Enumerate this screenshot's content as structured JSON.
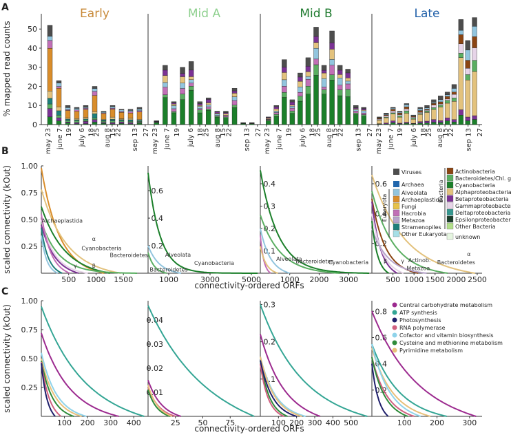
{
  "figure": {
    "panel_letters": [
      "A",
      "B",
      "C"
    ],
    "colors": {
      "Viruses": "#4d4d4d",
      "Archaea": "#2166ac",
      "Alveolata": "#92c5de",
      "Archaeplastida": "#d98d2b",
      "Fungi": "#e6c24a",
      "Hacrobia": "#c16fb6",
      "Metazoa": "#b8a5cc",
      "Stramenopiles": "#1d7f7a",
      "Other Eukaryota": "#a6dfe6",
      "Actinobacteria": "#8b4513",
      "Bacteroidetes/Chl. gr.": "#5aae61",
      "Cyanobacteria": "#1b7f2a",
      "Alphaproteobacteria": "#e3c27d",
      "Betaproteobacteria": "#7b3294",
      "Gammaproteobacteria": "#e7d4e8",
      "Deltaproteobacteria": "#35978f",
      "Epsilonproteobacteria": "#1b3d2a",
      "Other Bacteria": "#b2df8a",
      "unknown": "#e5f5e0",
      "Central carbohydrate metabolism": "#9c2a8f",
      "ATP synthesis": "#33a594",
      "Photosynthesis": "#1f1f6b",
      "RNA polymerase": "#d06080",
      "Cofactor and vitamin biosynthesis": "#8fd3ea",
      "Cysteine and methionine metabolism": "#2e8b3a",
      "Pyrimidine metabolism": "#e8c07a"
    }
  },
  "chart_data": [
    {
      "panel": "A",
      "type": "bar",
      "stacked": true,
      "ylabel": "% mapped read counts",
      "ylim": [
        0,
        58
      ],
      "yticks": [
        0,
        10,
        20,
        30,
        40,
        50
      ],
      "subplots": [
        {
          "title": "Early",
          "title_color": "#c88a3a",
          "tick_labels": [
            "may 23",
            "june 7",
            "19",
            "july 6",
            "18",
            "25",
            "aug 8",
            "15",
            "22",
            "sep 13",
            "27"
          ],
          "tick_dates": [
            0,
            15,
            27,
            44,
            56,
            63,
            77,
            84,
            91,
            113,
            127
          ],
          "totals": [
            52,
            23,
            10,
            9,
            10,
            20,
            7,
            10,
            8,
            8,
            9
          ],
          "dominant": "Archaeplastida"
        },
        {
          "title": "Mid A",
          "title_color": "#8ed08e",
          "tick_labels": [
            "may 23",
            "june 7",
            "19",
            "july 6",
            "18",
            "25",
            "aug 8",
            "15",
            "22",
            "sep 13",
            "27"
          ],
          "tick_dates": [
            0,
            15,
            27,
            44,
            56,
            63,
            77,
            84,
            91,
            113,
            127
          ],
          "totals": [
            2,
            31,
            12,
            30,
            33,
            12,
            14,
            7,
            7,
            19,
            1,
            1
          ],
          "dominant": "Cyanobacteria"
        },
        {
          "title": "Mid B",
          "title_color": "#1e7a2e",
          "tick_labels": [
            "may 23",
            "june 7",
            "19",
            "july 6",
            "18",
            "25",
            "aug 8",
            "15",
            "22",
            "sep 13",
            "27"
          ],
          "tick_dates": [
            0,
            15,
            27,
            44,
            56,
            63,
            77,
            84,
            91,
            113,
            127
          ],
          "totals": [
            4,
            10,
            34,
            13,
            27,
            35,
            51,
            31,
            49,
            31,
            29,
            10,
            9
          ],
          "dominant": "Cyanobacteria"
        },
        {
          "title": "Late",
          "title_color": "#1f5fa8",
          "tick_labels": [
            "may 23",
            "june 7",
            "19",
            "july 6",
            "18",
            "25",
            "aug 8",
            "15",
            "22",
            "sep 13",
            "27"
          ],
          "tick_dates": [
            0,
            15,
            27,
            44,
            56,
            63,
            77,
            84,
            91,
            113,
            127
          ],
          "totals": [
            4,
            6,
            9,
            7,
            11,
            5,
            9,
            10,
            13,
            15,
            17,
            21,
            55,
            44,
            56
          ],
          "dominant": "Alphaproteobacteria"
        }
      ],
      "legend_groups": [
        {
          "group": "",
          "items": [
            "Viruses",
            "Archaea"
          ]
        },
        {
          "group": "Eukaryota",
          "items": [
            "Alveolata",
            "Archaeplastida",
            "Fungi",
            "Hacrobia",
            "Metazoa",
            "Stramenopiles",
            "Other Eukaryota"
          ]
        },
        {
          "group": "Bacteria",
          "items": [
            "Actinobacteria",
            "Bacteroidetes/Chl. gr.",
            "Cyanobacteria",
            "Alphaproteobacteria",
            "Betaproteobacteria",
            "Gammaproteobacteria",
            "Deltaproteobacteria",
            "Epsilonproteobacteria",
            "Other Bacteria"
          ]
        },
        {
          "group": "",
          "items": [
            "unknown"
          ]
        }
      ]
    },
    {
      "panel": "B",
      "type": "line",
      "ylabel": "scaled connectivity (kOut)",
      "xlabel": "connectivity-ordered ORFs",
      "subplots": [
        {
          "xlim": [
            0,
            1900
          ],
          "ylim": [
            0,
            1.0
          ],
          "xticks": [
            500,
            1000,
            1500
          ],
          "yticks": [
            0.25,
            0.5,
            0.75,
            1.0
          ],
          "ytick_labels": [
            "0.25",
            "0.50",
            "0.75",
            "1.00"
          ],
          "series": [
            {
              "name": "Archaeplastida",
              "n": 1150,
              "y0": 0.98,
              "k": 3.5
            },
            {
              "name": "Alphaproteobacteria",
              "n": 1450,
              "y0": 0.78,
              "k": 3.2
            },
            {
              "name": "Cyanobacteria",
              "n": 1250,
              "y0": 0.62,
              "k": 3.0
            },
            {
              "name": "Bacteroidetes/Chl. gr.",
              "n": 1750,
              "y0": 0.48,
              "k": 5.5
            },
            {
              "name": "Betaproteobacteria",
              "n": 680,
              "y0": 0.45,
              "k": 2.8
            },
            {
              "name": "Gammaproteobacteria",
              "n": 850,
              "y0": 0.5,
              "k": 3.5
            },
            {
              "name": "Hacrobia",
              "n": 520,
              "y0": 0.55,
              "k": 3.0
            },
            {
              "name": "Stramenopiles",
              "n": 380,
              "y0": 0.42,
              "k": 3.0
            },
            {
              "name": "Alveolata",
              "n": 300,
              "y0": 0.35,
              "k": 3.0
            }
          ],
          "annotations": [
            {
              "text": "Archaeplastida",
              "x": 380,
              "y": 0.47
            },
            {
              "text": "α",
              "x": 960,
              "y": 0.3
            },
            {
              "text": "Cyanobacteria",
              "x": 1100,
              "y": 0.215
            },
            {
              "text": "Bacteroidetes",
              "x": 1600,
              "y": 0.15
            },
            {
              "text": "γ",
              "x": 620,
              "y": 0.05
            },
            {
              "text": "β",
              "x": 960,
              "y": 0.05
            }
          ]
        },
        {
          "xlim": [
            0,
            5300
          ],
          "ylim": [
            0,
            0.78
          ],
          "xticks": [
            1000,
            3000,
            5000
          ],
          "yticks": [
            0.2,
            0.4,
            0.6
          ],
          "ytick_labels": [
            "0.2",
            "0.4",
            "0.6"
          ],
          "series": [
            {
              "name": "Cyanobacteria",
              "n": 5300,
              "y0": 0.73,
              "k": 9.0
            },
            {
              "name": "Alveolata",
              "n": 1600,
              "y0": 0.2,
              "k": 3.0
            },
            {
              "name": "Bacteroidetes/Chl. gr.",
              "n": 900,
              "y0": 0.15,
              "k": 3.0
            }
          ],
          "annotations": [
            {
              "text": "Alveolata",
              "x": 1450,
              "y": 0.12
            },
            {
              "text": "Cyanobacteria",
              "x": 3200,
              "y": 0.06
            },
            {
              "text": "Bacteroidetes",
              "x": 1000,
              "y": 0.012
            }
          ]
        },
        {
          "xlim": [
            0,
            3700
          ],
          "ylim": [
            0,
            0.48
          ],
          "xticks": [
            1000,
            2000,
            3000
          ],
          "yticks": [
            0.1,
            0.2,
            0.3,
            0.4
          ],
          "ytick_labels": [
            "0.1",
            "0.2",
            "0.3",
            "0.4"
          ],
          "series": [
            {
              "name": "Cyanobacteria",
              "n": 3700,
              "y0": 0.46,
              "k": 6.0
            },
            {
              "name": "Bacteroidetes/Chl. gr.",
              "n": 2700,
              "y0": 0.26,
              "k": 4.0
            },
            {
              "name": "Alveolata",
              "n": 1000,
              "y0": 0.2,
              "k": 3.0
            },
            {
              "name": "Hacrobia",
              "n": 350,
              "y0": 0.17,
              "k": 3.0
            },
            {
              "name": "Alphaproteobacteria",
              "n": 600,
              "y0": 0.12,
              "k": 3.0
            }
          ],
          "annotations": [
            {
              "text": "Alveolata",
              "x": 980,
              "y": 0.055
            },
            {
              "text": "Bacteroidetes",
              "x": 1850,
              "y": 0.045
            },
            {
              "text": "Cyanobacteria",
              "x": 3000,
              "y": 0.04
            }
          ]
        },
        {
          "xlim": [
            0,
            2550
          ],
          "ylim": [
            0,
            0.72
          ],
          "xticks": [
            500,
            1000,
            1500,
            2000,
            2500
          ],
          "yticks": [
            0.2,
            0.4,
            0.6
          ],
          "ytick_labels": [
            "0.2",
            "0.4",
            "0.6"
          ],
          "series": [
            {
              "name": "Alphaproteobacteria",
              "n": 2450,
              "y0": 0.66,
              "k": 3.2
            },
            {
              "name": "Bacteroidetes/Chl. gr.",
              "n": 1800,
              "y0": 0.55,
              "k": 3.5
            },
            {
              "name": "Actinobacteria",
              "n": 1100,
              "y0": 0.5,
              "k": 3.5
            },
            {
              "name": "Betaproteobacteria",
              "n": 600,
              "y0": 0.48,
              "k": 3.0
            },
            {
              "name": "Gammaproteobacteria",
              "n": 750,
              "y0": 0.4,
              "k": 3.0
            },
            {
              "name": "Metazoa",
              "n": 1300,
              "y0": 0.3,
              "k": 3.5
            },
            {
              "name": "Cyanobacteria",
              "n": 400,
              "y0": 0.35,
              "k": 3.0
            }
          ],
          "annotations": [
            {
              "text": "α",
              "x": 2300,
              "y": 0.115
            },
            {
              "text": "Actinob.",
              "x": 1130,
              "y": 0.075
            },
            {
              "text": "Bacteroidetes",
              "x": 2000,
              "y": 0.06
            },
            {
              "text": "β",
              "x": 320,
              "y": 0.07
            },
            {
              "text": "γ",
              "x": 730,
              "y": 0.07
            },
            {
              "text": "Metazoa",
              "x": 1100,
              "y": 0.02
            }
          ]
        }
      ]
    },
    {
      "panel": "C",
      "type": "line",
      "ylabel": "scaled connectivity (kOut)",
      "xlabel": "connectivity-ordered ORFs",
      "legend": [
        "Central carbohydrate metabolism",
        "ATP synthesis",
        "Photosynthesis",
        "RNA polymerase",
        "Cofactor and vitamin biosynthesis",
        "Cysteine and methionine metabolism",
        "Pyrimidine metabolism"
      ],
      "subplots": [
        {
          "xlim": [
            0,
            450
          ],
          "ylim": [
            0,
            1.0
          ],
          "xticks": [
            100,
            200,
            300,
            400
          ],
          "yticks": [
            0.25,
            0.5,
            0.75,
            1.0
          ],
          "ytick_labels": [
            "0.25",
            "0.50",
            "0.75",
            "1.00"
          ],
          "series": [
            {
              "name": "ATP synthesis",
              "n": 445,
              "y0": 0.95,
              "k": 2.5
            },
            {
              "name": "Central carbohydrate metabolism",
              "n": 335,
              "y0": 0.72,
              "k": 2.8
            },
            {
              "name": "Cofactor and vitamin biosynthesis",
              "n": 195,
              "y0": 0.55,
              "k": 3.0
            },
            {
              "name": "Pyrimidine metabolism",
              "n": 175,
              "y0": 0.5,
              "k": 3.0
            },
            {
              "name": "Cysteine and methionine metabolism",
              "n": 140,
              "y0": 0.48,
              "k": 3.0
            },
            {
              "name": "RNA polymerase",
              "n": 85,
              "y0": 0.47,
              "k": 2.5
            },
            {
              "name": "Photosynthesis",
              "n": 60,
              "y0": 0.46,
              "k": 2.5
            }
          ]
        },
        {
          "xlim": [
            0,
            100
          ],
          "ylim": [
            0,
            0.048
          ],
          "xticks": [
            25,
            50,
            75
          ],
          "yticks": [
            0.01,
            0.02,
            0.03,
            0.04
          ],
          "ytick_labels": [
            "0.01",
            "0.02",
            "0.03",
            "0.04"
          ],
          "series": [
            {
              "name": "ATP synthesis",
              "n": 97,
              "y0": 0.046,
              "k": 2.0
            },
            {
              "name": "Central carbohydrate metabolism",
              "n": 30,
              "y0": 0.015,
              "k": 2.5
            },
            {
              "name": "RNA polymerase",
              "n": 25,
              "y0": 0.012,
              "k": 2.5
            },
            {
              "name": "Cysteine and methionine metabolism",
              "n": 20,
              "y0": 0.011,
              "k": 2.5
            },
            {
              "name": "Pyrimidine metabolism",
              "n": 22,
              "y0": 0.013,
              "k": 2.5
            }
          ]
        },
        {
          "xlim": [
            0,
            600
          ],
          "ylim": [
            0,
            0.31
          ],
          "xticks": [
            100,
            200,
            300,
            400,
            500
          ],
          "yticks": [
            0.1,
            0.2,
            0.3
          ],
          "ytick_labels": [
            "0.1",
            "0.2",
            "0.3"
          ],
          "series": [
            {
              "name": "ATP synthesis",
              "n": 590,
              "y0": 0.3,
              "k": 2.6
            },
            {
              "name": "Central carbohydrate metabolism",
              "n": 330,
              "y0": 0.22,
              "k": 2.6
            },
            {
              "name": "Cofactor and vitamin biosynthesis",
              "n": 250,
              "y0": 0.16,
              "k": 3.0
            },
            {
              "name": "Pyrimidine metabolism",
              "n": 230,
              "y0": 0.16,
              "k": 3.0
            },
            {
              "name": "Cysteine and methionine metabolism",
              "n": 150,
              "y0": 0.15,
              "k": 3.0
            },
            {
              "name": "RNA polymerase",
              "n": 130,
              "y0": 0.14,
              "k": 3.0
            },
            {
              "name": "Photosynthesis",
              "n": 200,
              "y0": 0.15,
              "k": 3.0
            }
          ]
        },
        {
          "xlim": [
            0,
            330
          ],
          "ylim": [
            0,
            0.88
          ],
          "xticks": [
            100,
            200,
            300
          ],
          "yticks": [
            0.2,
            0.4,
            0.6,
            0.8
          ],
          "ytick_labels": [
            "0.2",
            "0.4",
            "0.6",
            "0.8"
          ],
          "series": [
            {
              "name": "Central carbohydrate metabolism",
              "n": 320,
              "y0": 0.8,
              "k": 2.4
            },
            {
              "name": "ATP synthesis",
              "n": 230,
              "y0": 0.55,
              "k": 2.8
            },
            {
              "name": "Pyrimidine metabolism",
              "n": 180,
              "y0": 0.52,
              "k": 2.8
            },
            {
              "name": "Cofactor and vitamin biosynthesis",
              "n": 150,
              "y0": 0.55,
              "k": 2.8
            },
            {
              "name": "RNA polymerase",
              "n": 130,
              "y0": 0.45,
              "k": 2.8
            },
            {
              "name": "Cysteine and methionine metabolism",
              "n": 110,
              "y0": 0.45,
              "k": 2.8
            },
            {
              "name": "Photosynthesis",
              "n": 50,
              "y0": 0.4,
              "k": 2.5
            }
          ]
        }
      ]
    }
  ]
}
